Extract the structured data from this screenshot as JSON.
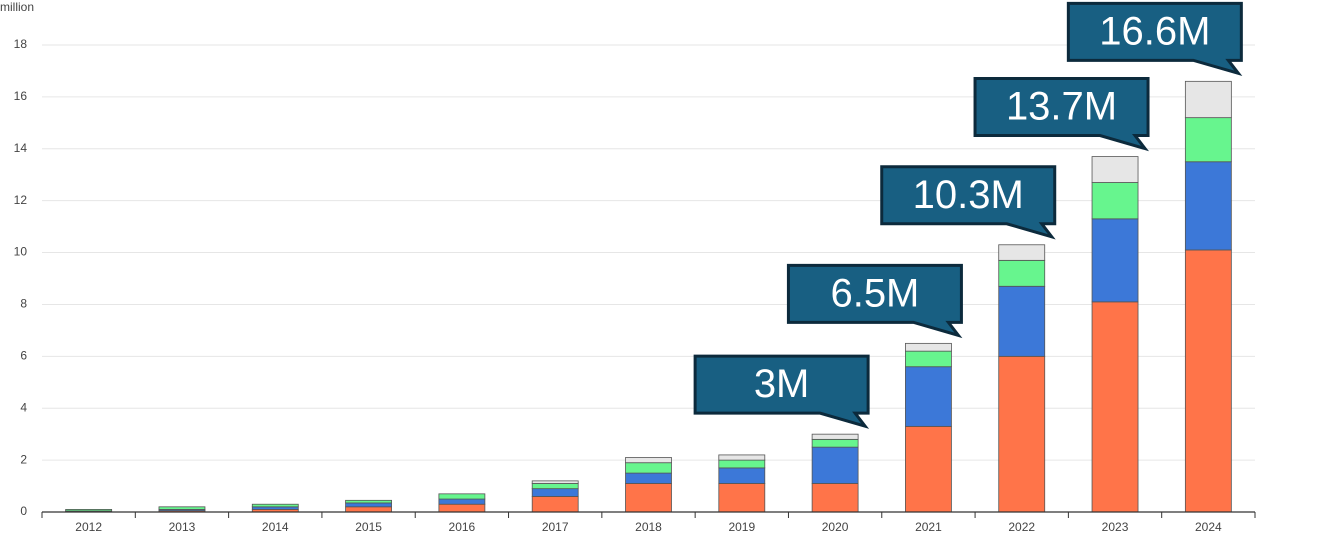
{
  "chart_data": {
    "type": "bar",
    "stacked": true,
    "y_axis_label": "million",
    "categories": [
      "2012",
      "2013",
      "2014",
      "2015",
      "2016",
      "2017",
      "2018",
      "2019",
      "2020",
      "2021",
      "2022",
      "2023",
      "2024"
    ],
    "series": [
      {
        "color": "#ff7449",
        "values": [
          0.02,
          0.05,
          0.1,
          0.2,
          0.3,
          0.6,
          1.1,
          1.1,
          1.1,
          3.3,
          6.0,
          8.1,
          10.1
        ]
      },
      {
        "color": "#3c78d8",
        "values": [
          0.02,
          0.05,
          0.1,
          0.15,
          0.2,
          0.3,
          0.4,
          0.6,
          1.4,
          2.3,
          2.7,
          3.2,
          3.4
        ]
      },
      {
        "color": "#67f58e",
        "values": [
          0.06,
          0.1,
          0.1,
          0.1,
          0.2,
          0.2,
          0.4,
          0.3,
          0.3,
          0.6,
          1.0,
          1.4,
          1.7
        ]
      },
      {
        "color": "#e6e6e6",
        "values": [
          0,
          0,
          0,
          0,
          0,
          0.1,
          0.2,
          0.2,
          0.2,
          0.3,
          0.6,
          1.0,
          1.4
        ]
      }
    ],
    "ylim": [
      0,
      18
    ],
    "yticks": [
      0,
      2,
      4,
      6,
      8,
      10,
      12,
      14,
      16,
      18
    ],
    "grid": true,
    "annotations": [
      {
        "x": "2020",
        "value": 3,
        "text": "3M"
      },
      {
        "x": "2021",
        "value": 6.5,
        "text": "6.5M"
      },
      {
        "x": "2022",
        "value": 10.3,
        "text": "10.3M"
      },
      {
        "x": "2023",
        "value": 13.7,
        "text": "13.7M"
      },
      {
        "x": "2024",
        "value": 16.6,
        "text": "16.6M"
      }
    ]
  }
}
